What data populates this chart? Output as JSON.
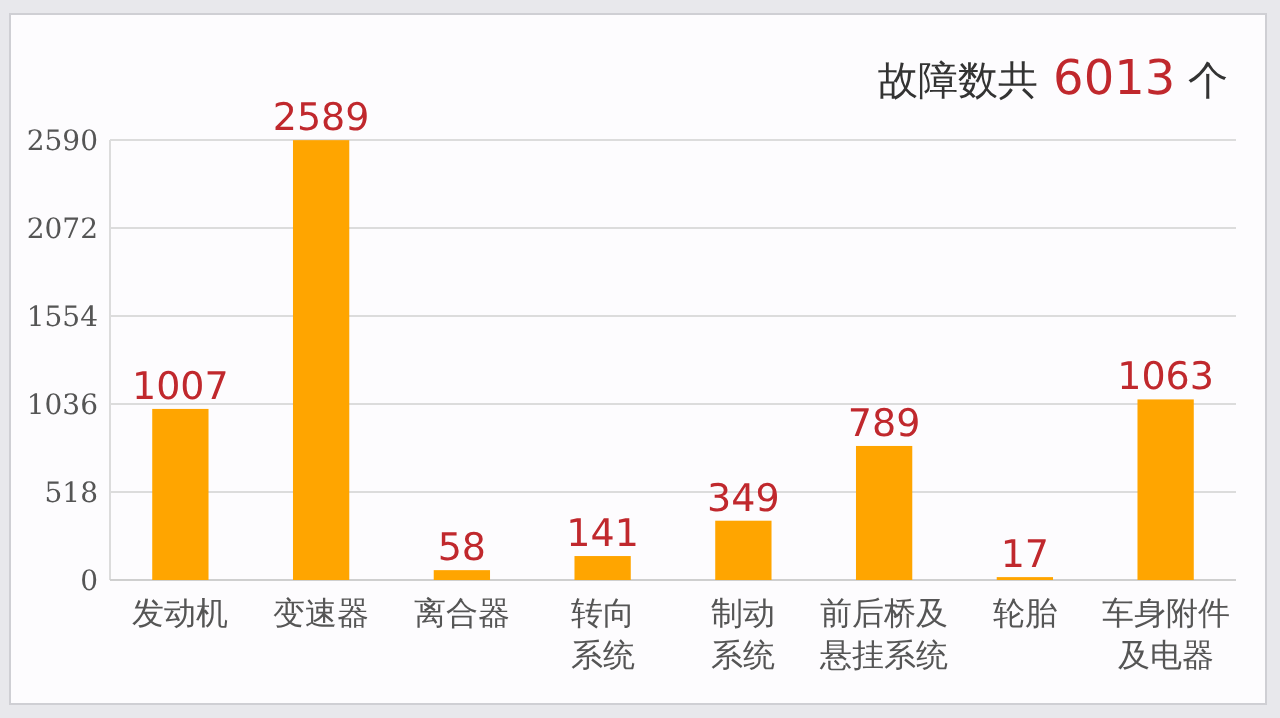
{
  "chart_data": {
    "type": "bar",
    "title": "故障数共 6013 个",
    "categories": [
      "发动机",
      "变速器",
      "离合器",
      "转向系统",
      "制动系统",
      "前后桥及悬挂系统",
      "轮胎",
      "车身附件及电器"
    ],
    "values": [
      1007,
      2589,
      58,
      141,
      349,
      789,
      17,
      1063
    ],
    "color": "#ffa500",
    "data_labels": true,
    "grid": "y",
    "ylim": [
      0,
      2590
    ],
    "yticks": [
      0,
      518,
      1036,
      1554,
      2072,
      2590
    ]
  }
}
